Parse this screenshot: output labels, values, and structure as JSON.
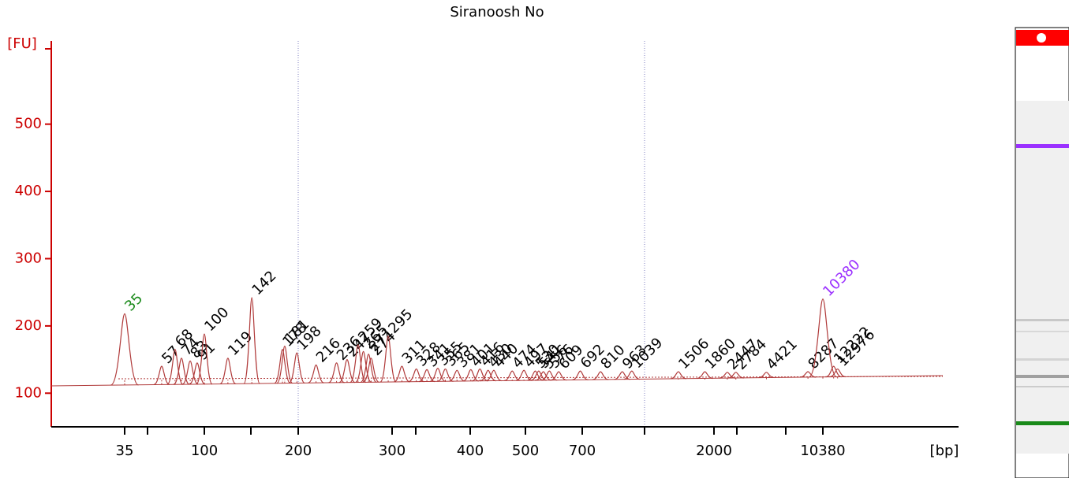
{
  "chart_data": {
    "type": "electropherogram",
    "title": "Siranoosh No",
    "ylabel": "[FU]",
    "xlabel": "[bp]",
    "ylim": [
      50,
      612
    ],
    "yticks": [
      100,
      200,
      300,
      400,
      500
    ],
    "xticks": [
      35,
      100,
      200,
      300,
      400,
      500,
      700,
      2000,
      10380
    ],
    "color": "#b03a3a",
    "axis_color": "#cc0000",
    "peaks": [
      {
        "bp": 35,
        "fu": 218,
        "color": "#1a8a1a"
      },
      {
        "bp": 57,
        "fu": 140
      },
      {
        "bp": 68,
        "fu": 165
      },
      {
        "bp": 74,
        "fu": 152
      },
      {
        "bp": 83,
        "fu": 148
      },
      {
        "bp": 91,
        "fu": 145
      },
      {
        "bp": 100,
        "fu": 188
      },
      {
        "bp": 119,
        "fu": 152
      },
      {
        "bp": 142,
        "fu": 242
      },
      {
        "bp": 178,
        "fu": 165
      },
      {
        "bp": 181,
        "fu": 170
      },
      {
        "bp": 198,
        "fu": 160
      },
      {
        "bp": 216,
        "fu": 142
      },
      {
        "bp": 236,
        "fu": 145
      },
      {
        "bp": 247,
        "fu": 150
      },
      {
        "bp": 259,
        "fu": 172
      },
      {
        "bp": 265,
        "fu": 162
      },
      {
        "bp": 271,
        "fu": 158
      },
      {
        "bp": 274,
        "fu": 152
      },
      {
        "bp": 295,
        "fu": 185
      },
      {
        "bp": 311,
        "fu": 140
      },
      {
        "bp": 328,
        "fu": 136
      },
      {
        "bp": 341,
        "fu": 135
      },
      {
        "bp": 355,
        "fu": 137
      },
      {
        "bp": 365,
        "fu": 136
      },
      {
        "bp": 381,
        "fu": 134
      },
      {
        "bp": 401,
        "fu": 135
      },
      {
        "bp": 416,
        "fu": 136
      },
      {
        "bp": 430,
        "fu": 134
      },
      {
        "bp": 440,
        "fu": 134
      },
      {
        "bp": 474,
        "fu": 133
      },
      {
        "bp": 497,
        "fu": 134
      },
      {
        "bp": 530,
        "fu": 133
      },
      {
        "bp": 541,
        "fu": 133
      },
      {
        "bp": 556,
        "fu": 132
      },
      {
        "bp": 576,
        "fu": 133
      },
      {
        "bp": 609,
        "fu": 132
      },
      {
        "bp": 692,
        "fu": 133
      },
      {
        "bp": 810,
        "fu": 132
      },
      {
        "bp": 963,
        "fu": 132
      },
      {
        "bp": 1039,
        "fu": 133
      },
      {
        "bp": 1506,
        "fu": 132
      },
      {
        "bp": 1860,
        "fu": 132
      },
      {
        "bp": 2447,
        "fu": 131
      },
      {
        "bp": 2784,
        "fu": 131
      },
      {
        "bp": 4421,
        "fu": 131
      },
      {
        "bp": 8287,
        "fu": 132
      },
      {
        "bp": 10380,
        "fu": 240,
        "color": "#9b30ff"
      },
      {
        "bp": 12222,
        "fu": 140
      },
      {
        "bp": 12976,
        "fu": 136
      }
    ]
  }
}
